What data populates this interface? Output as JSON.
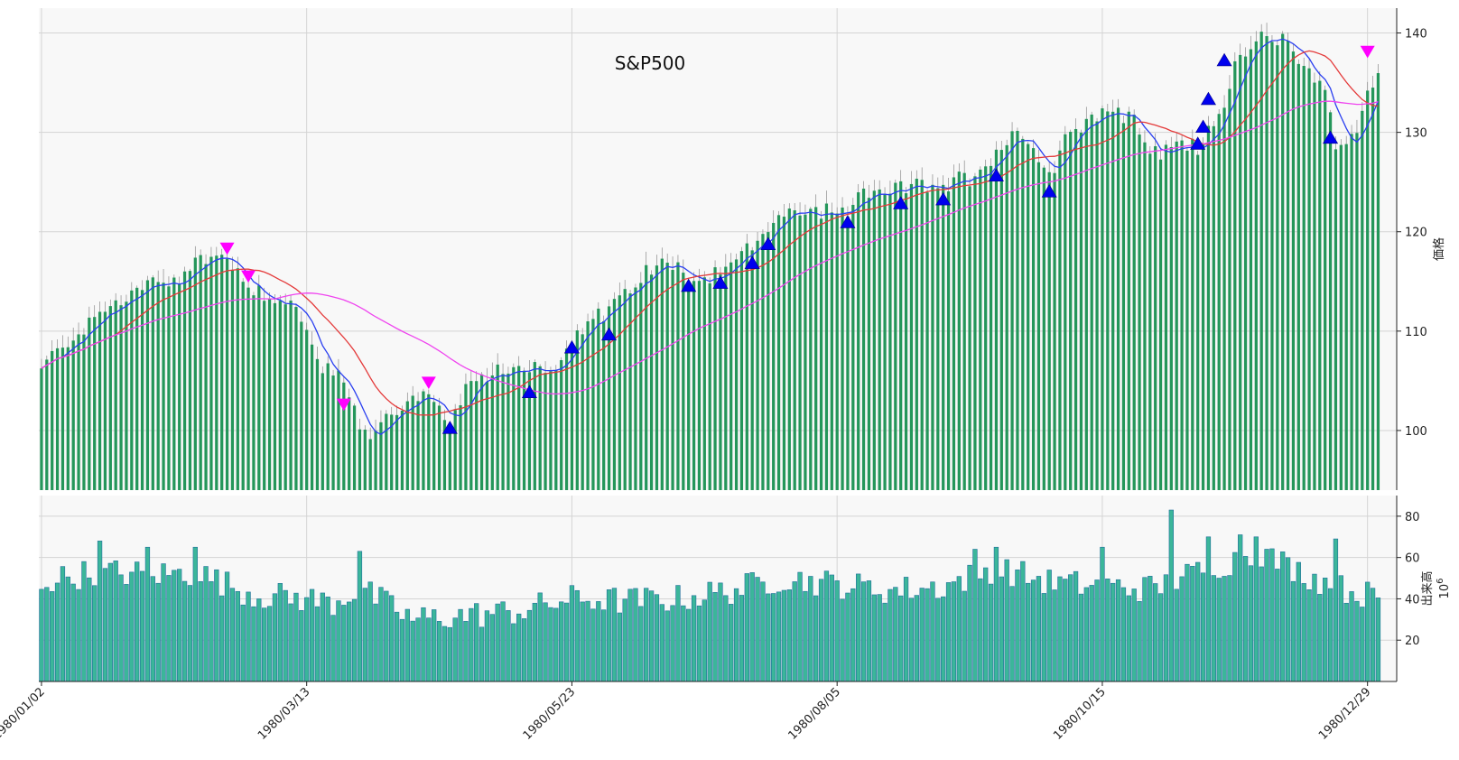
{
  "chart_data": {
    "type": "bar",
    "title": "S&P500",
    "price_panel": {
      "ylabel": "価格",
      "ylim": [
        94,
        142.5
      ],
      "yticks": [
        100,
        110,
        120,
        130,
        140
      ],
      "grid": true
    },
    "volume_panel": {
      "ylabel": "出来高",
      "unit_base": "10",
      "unit_exp": "6",
      "ylim": [
        0,
        90
      ],
      "yticks": [
        20,
        40,
        60,
        80
      ],
      "grid": true
    },
    "x_ticks": [
      {
        "index": 0,
        "label": "1980/01/02"
      },
      {
        "index": 50,
        "label": "1980/03/13"
      },
      {
        "index": 100,
        "label": "1980/05/23"
      },
      {
        "index": 150,
        "label": "1980/08/05"
      },
      {
        "index": 200,
        "label": "1980/10/15"
      },
      {
        "index": 250,
        "label": "1980/12/29"
      }
    ],
    "n_days": 253,
    "price_keys": [
      [
        0,
        106
      ],
      [
        5,
        109
      ],
      [
        10,
        111
      ],
      [
        15,
        113
      ],
      [
        20,
        114.5
      ],
      [
        25,
        115
      ],
      [
        30,
        117
      ],
      [
        35,
        117.5
      ],
      [
        38,
        115
      ],
      [
        42,
        113.5
      ],
      [
        46,
        113
      ],
      [
        48,
        112
      ],
      [
        50,
        110
      ],
      [
        52,
        107
      ],
      [
        56,
        105
      ],
      [
        58,
        103
      ],
      [
        60,
        100
      ],
      [
        62,
        99
      ],
      [
        64,
        100.5
      ],
      [
        66,
        102
      ],
      [
        68,
        102.5
      ],
      [
        70,
        103
      ],
      [
        72,
        103.5
      ],
      [
        74,
        102
      ],
      [
        77,
        100.5
      ],
      [
        80,
        103.5
      ],
      [
        84,
        105.5
      ],
      [
        88,
        106
      ],
      [
        92,
        106.5
      ],
      [
        95,
        106
      ],
      [
        100,
        108
      ],
      [
        103,
        111
      ],
      [
        106,
        111.5
      ],
      [
        110,
        113.5
      ],
      [
        114,
        116
      ],
      [
        118,
        116.5
      ],
      [
        120,
        116
      ],
      [
        124,
        115
      ],
      [
        128,
        116
      ],
      [
        132,
        117.5
      ],
      [
        136,
        119
      ],
      [
        140,
        122
      ],
      [
        145,
        122
      ],
      [
        150,
        121
      ],
      [
        154,
        123
      ],
      [
        158,
        124.5
      ],
      [
        162,
        124
      ],
      [
        166,
        124.5
      ],
      [
        170,
        124
      ],
      [
        172,
        125
      ],
      [
        176,
        125.5
      ],
      [
        180,
        128
      ],
      [
        184,
        130
      ],
      [
        186,
        129
      ],
      [
        190,
        125.5
      ],
      [
        194,
        130
      ],
      [
        198,
        131.5
      ],
      [
        202,
        132
      ],
      [
        206,
        131
      ],
      [
        210,
        127.5
      ],
      [
        214,
        128.5
      ],
      [
        218,
        128.5
      ],
      [
        222,
        132
      ],
      [
        226,
        137
      ],
      [
        230,
        139.5
      ],
      [
        234,
        139
      ],
      [
        238,
        137
      ],
      [
        242,
        134
      ],
      [
        244,
        129
      ],
      [
        246,
        128.5
      ],
      [
        248,
        130
      ],
      [
        250,
        134
      ],
      [
        252,
        135.5
      ]
    ],
    "volume_keys": [
      [
        0,
        48
      ],
      [
        10,
        53
      ],
      [
        20,
        52
      ],
      [
        30,
        52
      ],
      [
        40,
        42
      ],
      [
        50,
        40
      ],
      [
        55,
        38
      ],
      [
        60,
        45
      ],
      [
        70,
        30
      ],
      [
        80,
        32
      ],
      [
        90,
        34
      ],
      [
        100,
        40
      ],
      [
        110,
        39
      ],
      [
        120,
        40
      ],
      [
        130,
        44
      ],
      [
        140,
        50
      ],
      [
        150,
        47
      ],
      [
        160,
        44
      ],
      [
        170,
        46
      ],
      [
        180,
        55
      ],
      [
        190,
        48
      ],
      [
        200,
        46
      ],
      [
        210,
        45
      ],
      [
        220,
        55
      ],
      [
        230,
        62
      ],
      [
        240,
        50
      ],
      [
        245,
        45
      ],
      [
        250,
        42
      ],
      [
        252,
        38
      ]
    ],
    "volume_spikes": [
      [
        11,
        68
      ],
      [
        20,
        65
      ],
      [
        29,
        65
      ],
      [
        60,
        63
      ],
      [
        176,
        64
      ],
      [
        180,
        65
      ],
      [
        200,
        65
      ],
      [
        213,
        83
      ],
      [
        220,
        70
      ],
      [
        226,
        71
      ],
      [
        229,
        70
      ],
      [
        244,
        69
      ]
    ],
    "buy_signals": [
      [
        77,
        100.2
      ],
      [
        92,
        103.8
      ],
      [
        100,
        108.3
      ],
      [
        107,
        109.6
      ],
      [
        122,
        114.5
      ],
      [
        128,
        114.8
      ],
      [
        134,
        116.8
      ],
      [
        137,
        118.7
      ],
      [
        152,
        120.9
      ],
      [
        162,
        122.8
      ],
      [
        170,
        123.2
      ],
      [
        180,
        125.6
      ],
      [
        190,
        124
      ],
      [
        218,
        128.8
      ],
      [
        219,
        130.5
      ],
      [
        220,
        133.3
      ],
      [
        223,
        137.2
      ],
      [
        243,
        129.4
      ]
    ],
    "sell_signals": [
      [
        35,
        118.4
      ],
      [
        39,
        115.6
      ],
      [
        57,
        102.7
      ],
      [
        73,
        104.9
      ],
      [
        250,
        138.2
      ]
    ],
    "colors": {
      "candle": "#24965a",
      "volume": "#3bb69a",
      "volume_edge": "#1e6e9a",
      "ma_short": "#2a3ff0",
      "ma_mid": "#e43a3a",
      "ma_long": "#ef44ef",
      "buy_marker": "#0000ee",
      "sell_marker": "#ff00ff",
      "panel_bg": "#f8f8f8",
      "grid": "#d4d4d4"
    }
  }
}
